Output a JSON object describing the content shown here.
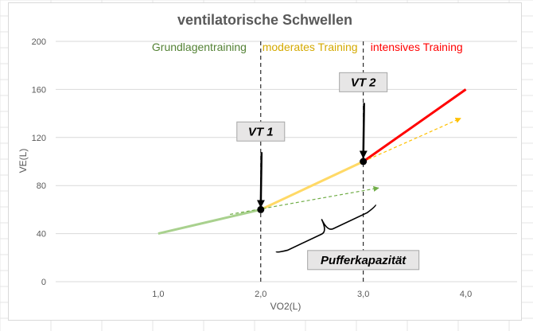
{
  "chart_data": {
    "type": "line",
    "title": "ventilatorische Schwellen",
    "xlabel": "VO2(L)",
    "ylabel": "VE(L)",
    "xlim": [
      0.0,
      4.5
    ],
    "ylim": [
      0,
      200
    ],
    "x_ticks": [
      "1,0",
      "2,0",
      "3,0",
      "4,0"
    ],
    "x_tick_values": [
      1.0,
      2.0,
      3.0,
      4.0
    ],
    "y_ticks": [
      "0",
      "40",
      "80",
      "120",
      "160",
      "200"
    ],
    "y_tick_values": [
      0,
      40,
      80,
      120,
      160,
      200
    ],
    "grid": "horizontal",
    "series": [
      {
        "color": "#a9d18e",
        "style": "solid",
        "x": [
          1.0,
          2.0
        ],
        "y": [
          40,
          60
        ]
      },
      {
        "color": "#ffd966",
        "style": "solid",
        "x": [
          2.0,
          3.0
        ],
        "y": [
          60,
          100
        ]
      },
      {
        "color": "#ff0000",
        "style": "solid",
        "x": [
          3.0,
          4.0
        ],
        "y": [
          100,
          160
        ]
      },
      {
        "color": "#70ad47",
        "style": "dashed-arrow",
        "x": [
          1.7,
          3.15
        ],
        "y": [
          56,
          78
        ]
      },
      {
        "color": "#ffc000",
        "style": "dashed-arrow",
        "x": [
          3.0,
          3.95
        ],
        "y": [
          100,
          136
        ]
      }
    ],
    "points": [
      {
        "x": 2.0,
        "y": 60
      },
      {
        "x": 3.0,
        "y": 100
      }
    ],
    "vlines": [
      2.0,
      3.0
    ],
    "zones": [
      {
        "label": "Grundlagentraining",
        "color": "#548235",
        "x": 1.4
      },
      {
        "label": "moderates Training",
        "color": "#d4a900",
        "x": 2.48
      },
      {
        "label": "intensives Training",
        "color": "#ff0000",
        "x": 3.52
      }
    ],
    "annotations": [
      {
        "label": "VT 1",
        "box_x": 2.0,
        "box_y": 125,
        "arrow_to": [
          2.0,
          62
        ]
      },
      {
        "label": "VT 2",
        "box_x": 3.0,
        "box_y": 166,
        "arrow_to": [
          3.0,
          103
        ]
      },
      {
        "label": "Pufferkapazität",
        "box_x": 3.0,
        "box_y": 18
      }
    ],
    "brace": {
      "from": [
        2.15,
        25
      ],
      "to": [
        3.12,
        64
      ]
    }
  }
}
